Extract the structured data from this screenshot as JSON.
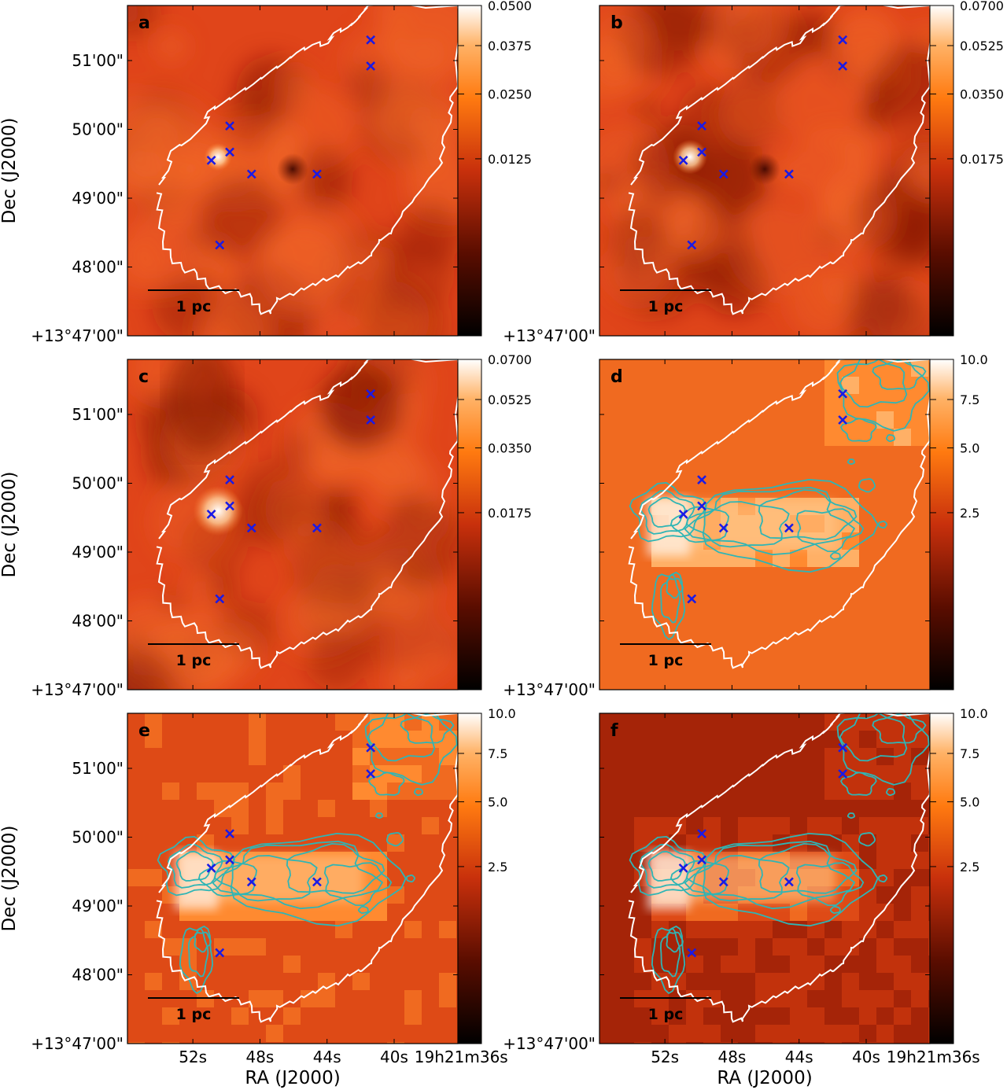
{
  "figure": {
    "ra_axis_label": "RA (J2000)",
    "dec_axis_label": "Dec (J2000)",
    "scale_bar_label": "1 pc"
  },
  "chart_data": {
    "type": "heatmap",
    "description_axes": {
      "dec_ticks_arcmin": [
        0,
        1,
        2,
        3,
        4,
        5
      ],
      "dec_tick_labels": [
        "+13°47'00\"",
        "48'00\"",
        "49'00\"",
        "50'00\"",
        "51'00\""
      ],
      "dec_lim_arcmin": [
        0,
        4.8
      ],
      "ra_tick_labels": [
        "52s",
        "48s",
        "44s",
        "40s",
        "19h21m36s"
      ],
      "ra_ticks_s": [
        52,
        48,
        44,
        40,
        36
      ],
      "ra_lim_s": [
        55.9,
        36.2
      ]
    },
    "colormap": "gist_heat",
    "markers_blue_x": [
      {
        "ra_s": 49.8,
        "dec_arcmin": 2.67
      },
      {
        "ra_s": 50.9,
        "dec_arcmin": 2.55
      },
      {
        "ra_s": 49.8,
        "dec_arcmin": 3.05
      },
      {
        "ra_s": 48.5,
        "dec_arcmin": 2.35
      },
      {
        "ra_s": 44.6,
        "dec_arcmin": 2.35
      },
      {
        "ra_s": 41.4,
        "dec_arcmin": 4.3
      },
      {
        "ra_s": 41.4,
        "dec_arcmin": 3.92
      },
      {
        "ra_s": 50.4,
        "dec_arcmin": 1.32
      }
    ],
    "panels": [
      {
        "id": "a",
        "letter": "a",
        "colorbar_ticks": [
          "0.0500",
          "0.0375",
          "0.0250",
          "0.0125"
        ],
        "colorbar_values": [
          0.05,
          0.0375,
          0.025,
          0.0125
        ],
        "vmax": 0.05,
        "contours": false
      },
      {
        "id": "b",
        "letter": "b",
        "colorbar_ticks": [
          "0.0700",
          "0.0525",
          "0.0350",
          "0.0175"
        ],
        "colorbar_values": [
          0.07,
          0.0525,
          0.035,
          0.0175
        ],
        "vmax": 0.07,
        "contours": false
      },
      {
        "id": "c",
        "letter": "c",
        "colorbar_ticks": [
          "0.0700",
          "0.0525",
          "0.0350",
          "0.0175"
        ],
        "colorbar_values": [
          0.07,
          0.0525,
          0.035,
          0.0175
        ],
        "vmax": 0.07,
        "contours": false
      },
      {
        "id": "d",
        "letter": "d",
        "colorbar_ticks": [
          "10.0",
          "7.5",
          "5.0",
          "2.5"
        ],
        "colorbar_values": [
          10.0,
          7.5,
          5.0,
          2.5
        ],
        "vmax": 10.0,
        "contours": true
      },
      {
        "id": "e",
        "letter": "e",
        "colorbar_ticks": [
          "10.0",
          "7.5",
          "5.0",
          "2.5"
        ],
        "colorbar_values": [
          10.0,
          7.5,
          5.0,
          2.5
        ],
        "vmax": 10.0,
        "contours": true
      },
      {
        "id": "f",
        "letter": "f",
        "colorbar_ticks": [
          "10.0",
          "7.5",
          "5.0",
          "2.5"
        ],
        "colorbar_values": [
          10.0,
          7.5,
          5.0,
          2.5
        ],
        "vmax": 10.0,
        "contours": true
      }
    ]
  },
  "colors": {
    "map_base": "#e0451a",
    "map_dark": "#8a1a04",
    "map_bright": "#ffe9c8",
    "boundary": "#ffffff",
    "marker": "#1a1ae6",
    "contour": "#2fb5b5"
  }
}
